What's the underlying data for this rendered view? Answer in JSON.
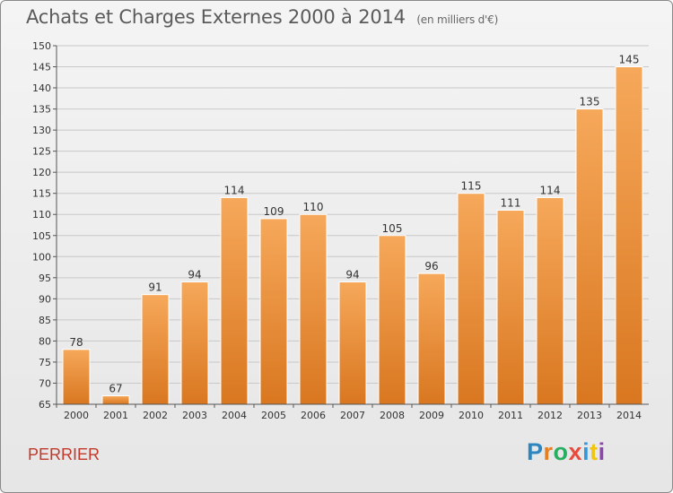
{
  "header": {
    "title": "Achats et Charges Externes 2000 à 2014",
    "subtitle": "(en milliers d'€)"
  },
  "footer": {
    "city": "PERRIER",
    "logo_letters": [
      "P",
      "r",
      "o",
      "x",
      "i",
      "t",
      "i"
    ],
    "logo_colors": [
      "#2e86c1",
      "#e67e22",
      "#27ae60",
      "#e74c3c",
      "#3498db",
      "#f1c40f",
      "#8e44ad"
    ]
  },
  "colors": {
    "bar_light": "#f6a85a",
    "bar_dark": "#d97720",
    "grid": "#c8c8c8",
    "axis": "#555555",
    "text": "#333333"
  },
  "chart_data": {
    "type": "bar",
    "title": "Achats et Charges Externes 2000 à 2014",
    "subtitle": "(en milliers d'€)",
    "categories": [
      "2000",
      "2001",
      "2002",
      "2003",
      "2004",
      "2005",
      "2006",
      "2007",
      "2008",
      "2009",
      "2010",
      "2011",
      "2012",
      "2013",
      "2014"
    ],
    "values": [
      78,
      67,
      91,
      94,
      114,
      109,
      110,
      94,
      105,
      96,
      115,
      111,
      114,
      135,
      145
    ],
    "ylim": [
      65,
      150
    ],
    "ytick_step": 5,
    "grid": true,
    "data_labels": true
  }
}
